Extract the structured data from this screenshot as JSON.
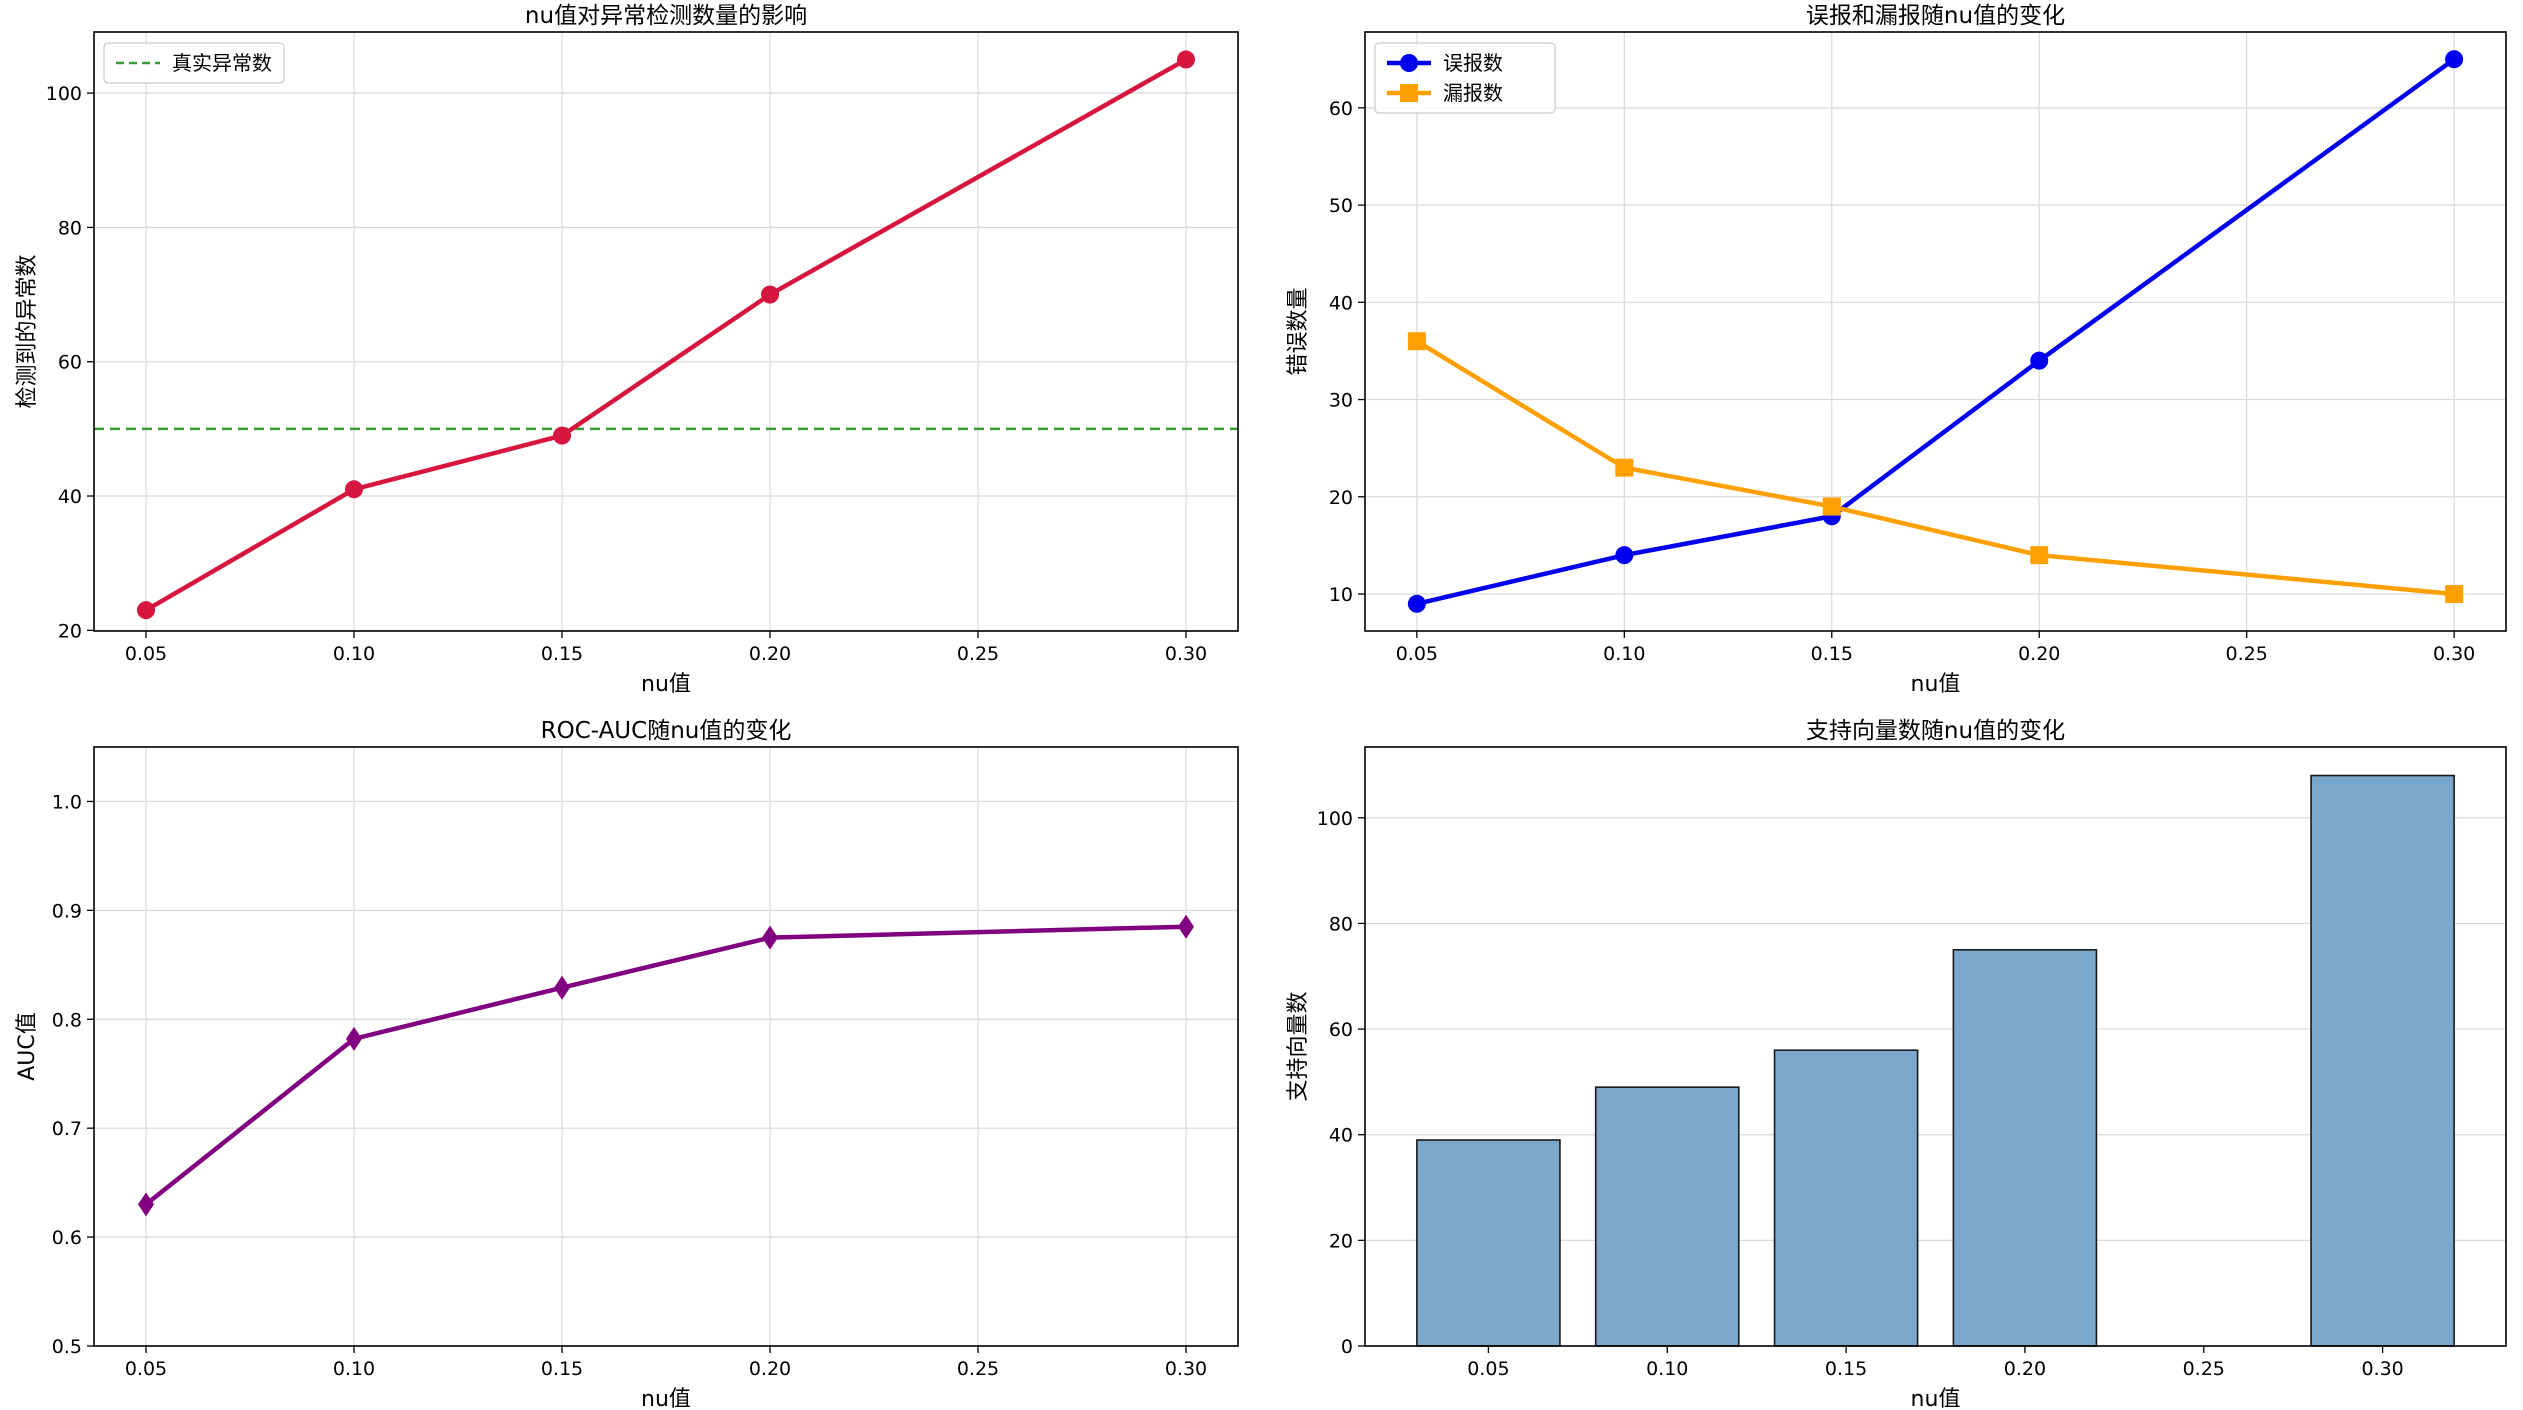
{
  "colors": {
    "detected": "#d6163e",
    "true_line": "#3a9a3a",
    "false_positive": "#0000ee",
    "false_negative": "#ffa000",
    "auc": "#800080",
    "bar_fill": "#7ba7cc",
    "bar_edge": "#1a1a1a"
  },
  "chart_data": [
    {
      "type": "line",
      "title": "nu值对异常检测数量的影响",
      "xlabel": "nu值",
      "ylabel": "检测到的异常数",
      "x": [
        0.05,
        0.1,
        0.15,
        0.2,
        0.3
      ],
      "series": [
        {
          "values": [
            23,
            41,
            49,
            70,
            105
          ],
          "marker": "circle",
          "color_key": "detected"
        }
      ],
      "reference_line": {
        "name": "真实异常数",
        "value": 50,
        "style": "dashed",
        "color_key": "true_line"
      },
      "xticks": [
        "0.05",
        "0.10",
        "0.15",
        "0.20",
        "0.25",
        "0.30"
      ],
      "xtick_values": [
        0.05,
        0.1,
        0.15,
        0.2,
        0.25,
        0.3
      ],
      "yticks": [
        "20",
        "40",
        "60",
        "80",
        "100"
      ],
      "ytick_values": [
        20,
        40,
        60,
        80,
        100
      ],
      "xlim": [
        0.0375,
        0.3125
      ],
      "ylim": [
        19.9,
        109.1
      ],
      "grid": true,
      "legend": "top-left"
    },
    {
      "type": "line",
      "title": "误报和漏报随nu值的变化",
      "xlabel": "nu值",
      "ylabel": "错误数量",
      "x": [
        0.05,
        0.1,
        0.15,
        0.2,
        0.3
      ],
      "series": [
        {
          "name": "误报数",
          "values": [
            9,
            14,
            18,
            34,
            65
          ],
          "marker": "circle",
          "color_key": "false_positive"
        },
        {
          "name": "漏报数",
          "values": [
            36,
            23,
            19,
            14,
            10
          ],
          "marker": "square",
          "color_key": "false_negative"
        }
      ],
      "xticks": [
        "0.05",
        "0.10",
        "0.15",
        "0.20",
        "0.25",
        "0.30"
      ],
      "xtick_values": [
        0.05,
        0.1,
        0.15,
        0.2,
        0.25,
        0.3
      ],
      "yticks": [
        "10",
        "20",
        "30",
        "40",
        "50",
        "60"
      ],
      "ytick_values": [
        10,
        20,
        30,
        40,
        50,
        60
      ],
      "xlim": [
        0.0375,
        0.3125
      ],
      "ylim": [
        6.2,
        67.8
      ],
      "grid": true,
      "legend": "top-left"
    },
    {
      "type": "line",
      "title": "ROC-AUC随nu值的变化",
      "xlabel": "nu值",
      "ylabel": "AUC值",
      "x": [
        0.05,
        0.1,
        0.15,
        0.2,
        0.3
      ],
      "series": [
        {
          "values": [
            0.63,
            0.782,
            0.829,
            0.875,
            0.885
          ],
          "marker": "diamond",
          "color_key": "auc"
        }
      ],
      "xticks": [
        "0.05",
        "0.10",
        "0.15",
        "0.20",
        "0.25",
        "0.30"
      ],
      "xtick_values": [
        0.05,
        0.1,
        0.15,
        0.2,
        0.25,
        0.3
      ],
      "yticks": [
        "0.5",
        "0.6",
        "0.7",
        "0.8",
        "0.9",
        "1.0"
      ],
      "ytick_values": [
        0.5,
        0.6,
        0.7,
        0.8,
        0.9,
        1.0
      ],
      "xlim": [
        0.0375,
        0.3125
      ],
      "ylim": [
        0.5,
        1.05
      ],
      "grid": true
    },
    {
      "type": "bar",
      "title": "支持向量数随nu值的变化",
      "xlabel": "nu值",
      "ylabel": "支持向量数",
      "x": [
        0.05,
        0.1,
        0.15,
        0.2,
        0.3
      ],
      "values": [
        39,
        49,
        56,
        75,
        108
      ],
      "bar_width": 0.04,
      "color_key": "bar_fill",
      "edge_key": "bar_edge",
      "xticks": [
        "0.05",
        "0.10",
        "0.15",
        "0.20",
        "0.25",
        "0.30"
      ],
      "xtick_values": [
        0.05,
        0.1,
        0.15,
        0.2,
        0.25,
        0.3
      ],
      "yticks": [
        "0",
        "20",
        "40",
        "60",
        "80",
        "100"
      ],
      "ytick_values": [
        0,
        20,
        40,
        60,
        80,
        100
      ],
      "xlim": [
        0.0155,
        0.3345
      ],
      "ylim": [
        0,
        113.4
      ],
      "grid": "y",
      "grid_note": ""
    }
  ]
}
